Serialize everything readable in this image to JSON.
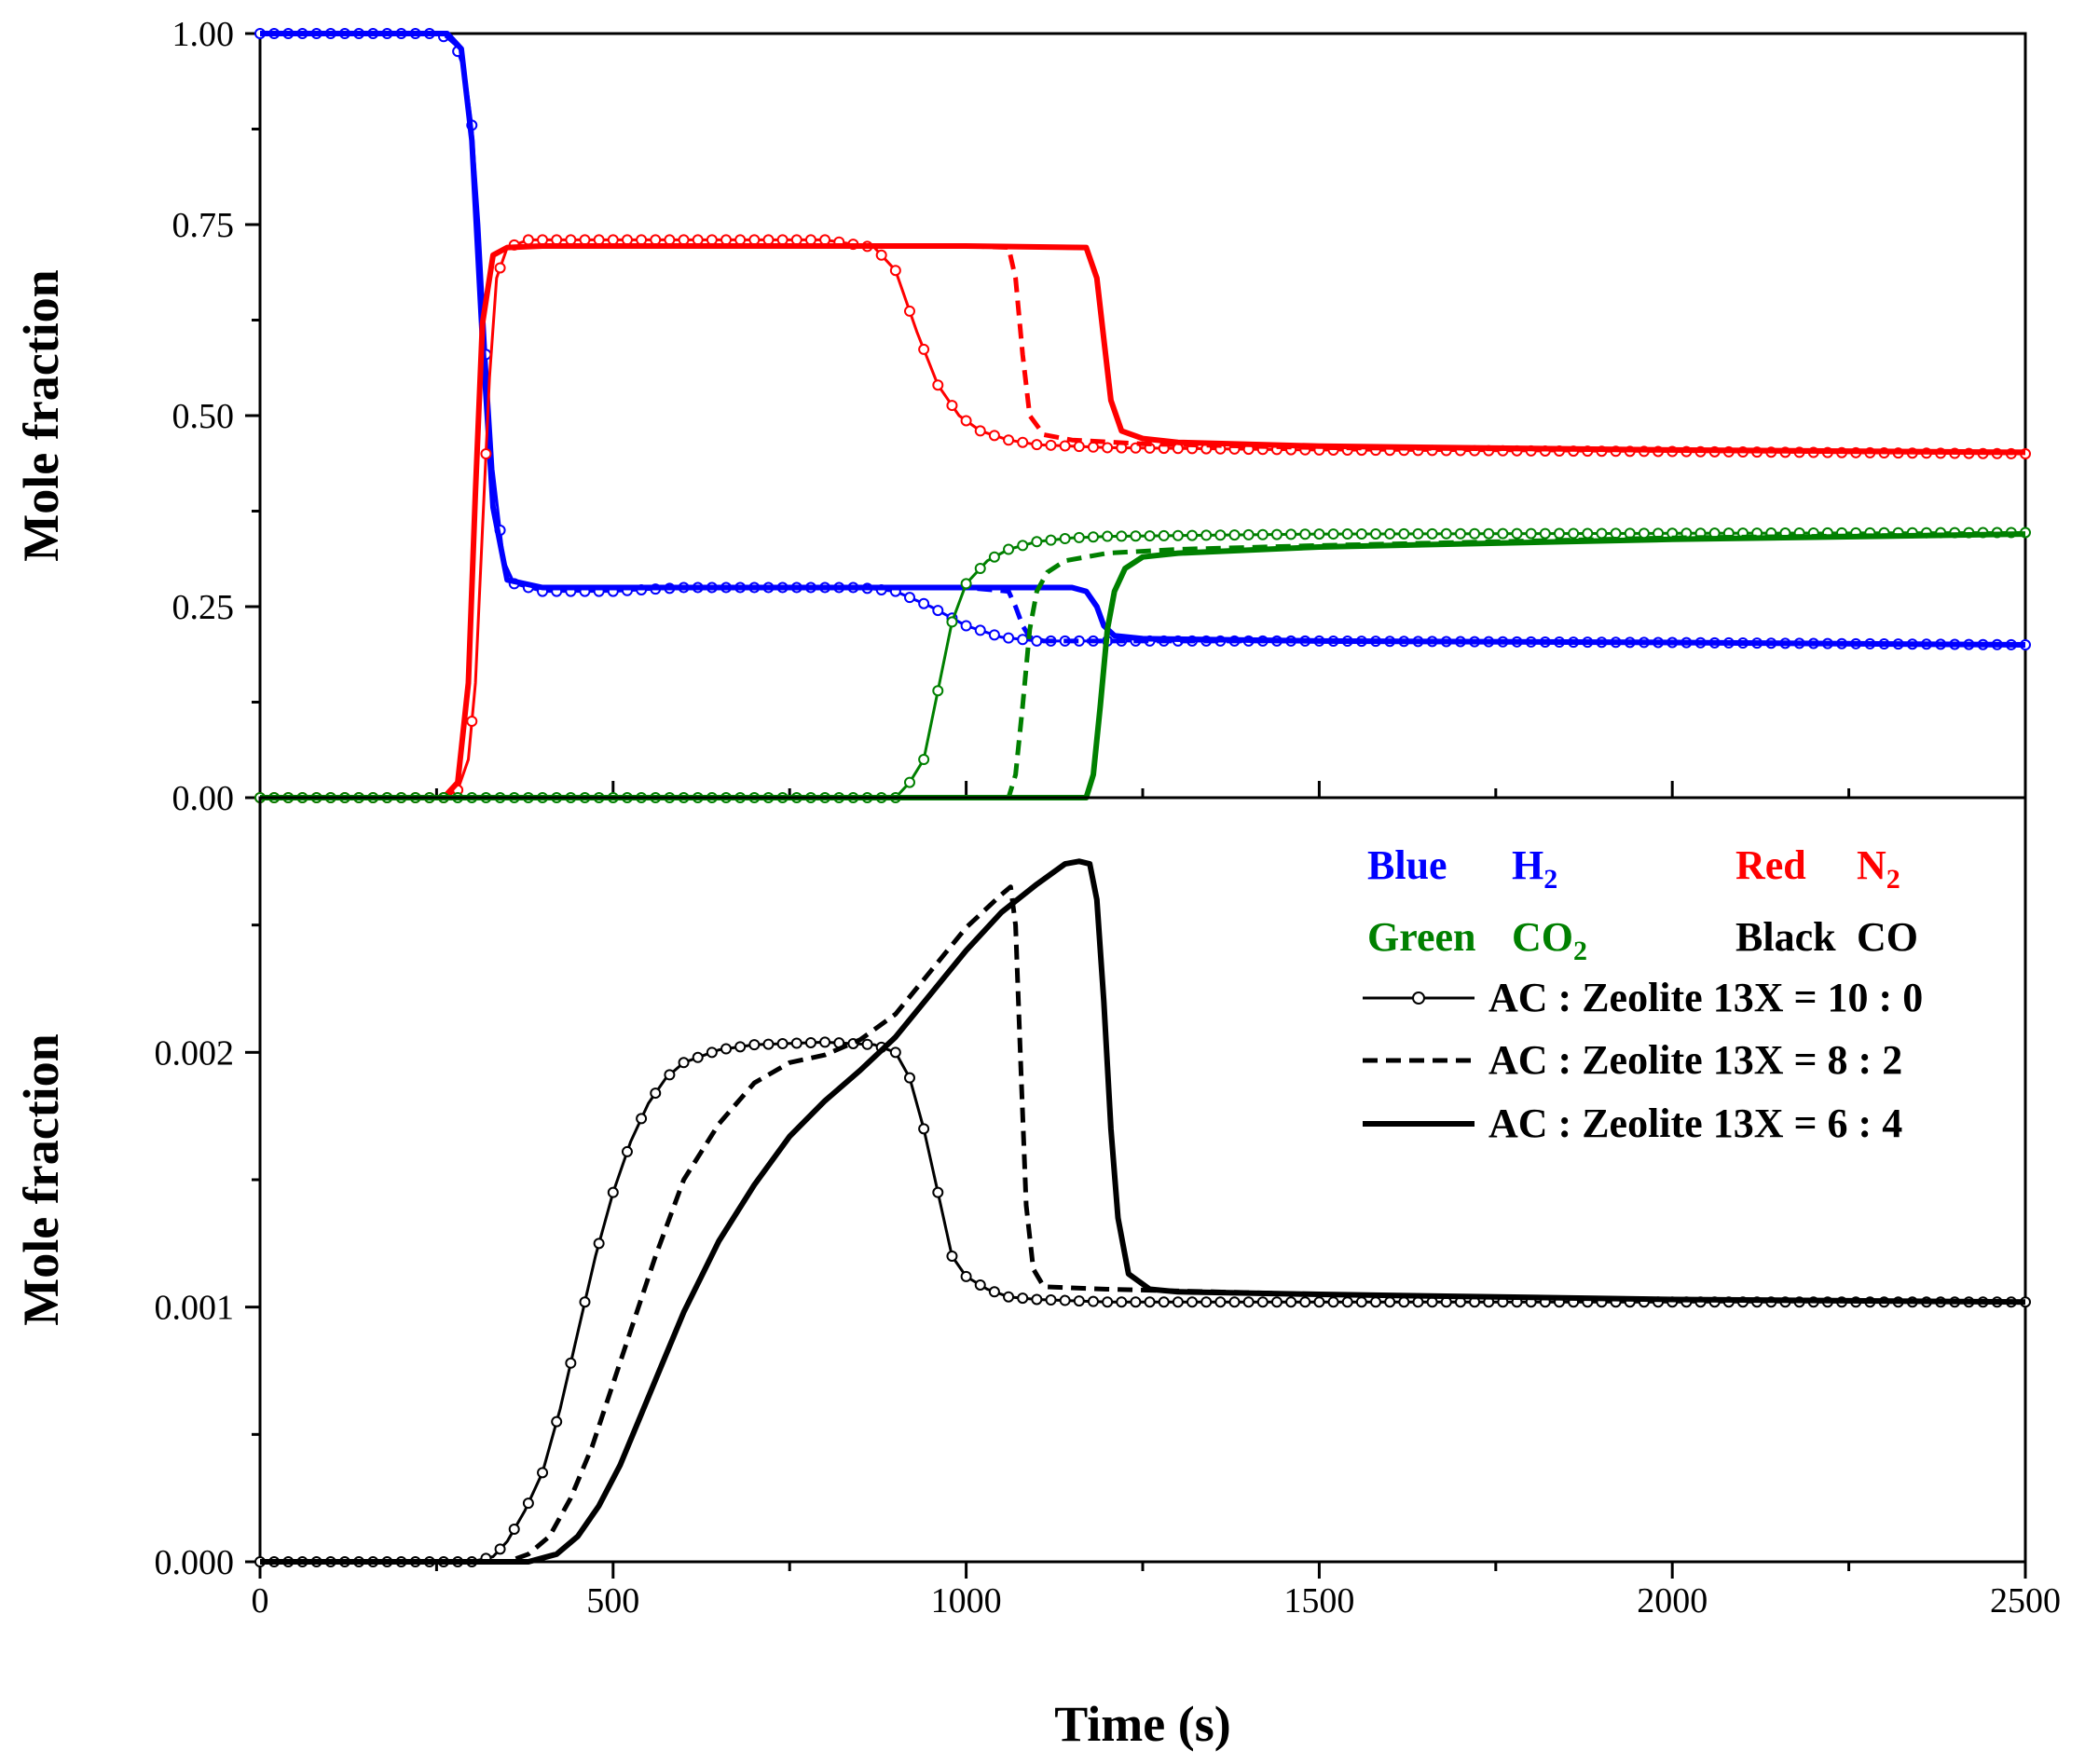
{
  "chart_data": [
    {
      "panel": "top",
      "type": "line",
      "xlabel": "Time (s)",
      "ylabel": "Mole fraction",
      "xlim": [
        0,
        2500
      ],
      "ylim": [
        0,
        1.0
      ],
      "xticks": [
        "0",
        "500",
        "1000",
        "1500",
        "2000",
        "2500"
      ],
      "yticks": [
        "0.00",
        "0.25",
        "0.50",
        "0.75",
        "1.00"
      ],
      "series": [
        {
          "name": "H2 AC : Zeolite 13X = 10 : 0",
          "color": "#0000ff",
          "style": "circle",
          "x": [
            0,
            250,
            275,
            290,
            300,
            310,
            320,
            330,
            345,
            360,
            400,
            500,
            600,
            700,
            850,
            900,
            950,
            1000,
            1050,
            1100,
            1200,
            1500,
            2000,
            2500
          ],
          "y": [
            1.0,
            1.0,
            0.99,
            0.95,
            0.88,
            0.75,
            0.58,
            0.43,
            0.31,
            0.28,
            0.27,
            0.27,
            0.275,
            0.275,
            0.275,
            0.27,
            0.25,
            0.225,
            0.21,
            0.205,
            0.205,
            0.205,
            0.203,
            0.2
          ]
        },
        {
          "name": "H2 AC : Zeolite 13X = 8 : 2",
          "color": "#0000ff",
          "style": "dashed",
          "x": [
            0,
            260,
            285,
            300,
            315,
            330,
            350,
            400,
            600,
            1000,
            1060,
            1070,
            1080,
            1090,
            1110,
            1200,
            1500,
            2000,
            2500
          ],
          "y": [
            1.0,
            1.0,
            0.98,
            0.86,
            0.6,
            0.38,
            0.285,
            0.275,
            0.275,
            0.275,
            0.27,
            0.25,
            0.225,
            0.21,
            0.205,
            0.205,
            0.205,
            0.203,
            0.2
          ]
        },
        {
          "name": "H2 AC : Zeolite 13X = 6 : 4",
          "color": "#0000ff",
          "style": "solid",
          "x": [
            0,
            265,
            285,
            300,
            315,
            330,
            350,
            400,
            600,
            1000,
            1150,
            1170,
            1185,
            1195,
            1210,
            1250,
            1500,
            2000,
            2500
          ],
          "y": [
            1.0,
            1.0,
            0.98,
            0.86,
            0.6,
            0.38,
            0.285,
            0.275,
            0.275,
            0.275,
            0.275,
            0.27,
            0.25,
            0.225,
            0.212,
            0.208,
            0.205,
            0.203,
            0.2
          ]
        },
        {
          "name": "N2 AC : Zeolite 13X = 10 : 0",
          "color": "#ff0000",
          "style": "circle",
          "x": [
            0,
            260,
            280,
            295,
            305,
            315,
            325,
            335,
            350,
            380,
            450,
            600,
            800,
            870,
            900,
            930,
            960,
            990,
            1020,
            1060,
            1100,
            1200,
            1500,
            2000,
            2500
          ],
          "y": [
            0.0,
            0.0,
            0.01,
            0.05,
            0.15,
            0.35,
            0.55,
            0.68,
            0.72,
            0.73,
            0.73,
            0.73,
            0.73,
            0.72,
            0.69,
            0.61,
            0.54,
            0.5,
            0.48,
            0.468,
            0.462,
            0.458,
            0.455,
            0.453,
            0.45
          ]
        },
        {
          "name": "N2 AC : Zeolite 13X = 8 : 2",
          "color": "#ff0000",
          "style": "dashed",
          "x": [
            0,
            260,
            280,
            295,
            305,
            315,
            330,
            350,
            400,
            600,
            1000,
            1060,
            1070,
            1080,
            1090,
            1110,
            1150,
            1250,
            1500,
            2000,
            2500
          ],
          "y": [
            0.0,
            0.0,
            0.02,
            0.15,
            0.4,
            0.62,
            0.71,
            0.72,
            0.722,
            0.722,
            0.722,
            0.72,
            0.68,
            0.58,
            0.5,
            0.475,
            0.468,
            0.463,
            0.458,
            0.455,
            0.452
          ]
        },
        {
          "name": "N2 AC : Zeolite 13X = 6 : 4",
          "color": "#ff0000",
          "style": "solid",
          "x": [
            0,
            260,
            280,
            295,
            305,
            315,
            330,
            350,
            400,
            600,
            1000,
            1170,
            1185,
            1195,
            1205,
            1220,
            1250,
            1300,
            1500,
            2000,
            2500
          ],
          "y": [
            0.0,
            0.0,
            0.02,
            0.15,
            0.4,
            0.62,
            0.71,
            0.72,
            0.722,
            0.722,
            0.722,
            0.72,
            0.68,
            0.6,
            0.52,
            0.48,
            0.47,
            0.465,
            0.46,
            0.455,
            0.452
          ]
        },
        {
          "name": "CO2 AC : Zeolite 13X = 10 : 0",
          "color": "#008000",
          "style": "circle",
          "x": [
            0,
            900,
            920,
            940,
            960,
            980,
            1000,
            1030,
            1060,
            1100,
            1150,
            1200,
            1300,
            1500,
            2000,
            2500
          ],
          "y": [
            0.0,
            0.0,
            0.02,
            0.05,
            0.14,
            0.23,
            0.28,
            0.31,
            0.325,
            0.335,
            0.34,
            0.342,
            0.343,
            0.345,
            0.346,
            0.347
          ]
        },
        {
          "name": "CO2 AC : Zeolite 13X = 8 : 2",
          "color": "#008000",
          "style": "dashed",
          "x": [
            0,
            1060,
            1070,
            1080,
            1090,
            1100,
            1115,
            1140,
            1200,
            1300,
            1500,
            2000,
            2500
          ],
          "y": [
            0.0,
            0.0,
            0.03,
            0.12,
            0.22,
            0.27,
            0.295,
            0.31,
            0.32,
            0.325,
            0.33,
            0.34,
            0.345
          ]
        },
        {
          "name": "CO2 AC : Zeolite 13X = 6 : 4",
          "color": "#008000",
          "style": "solid",
          "x": [
            0,
            1170,
            1180,
            1190,
            1200,
            1210,
            1225,
            1250,
            1300,
            1500,
            2000,
            2500
          ],
          "y": [
            0.0,
            0.0,
            0.03,
            0.12,
            0.22,
            0.27,
            0.3,
            0.315,
            0.32,
            0.328,
            0.338,
            0.345
          ]
        }
      ]
    },
    {
      "panel": "bottom",
      "type": "line",
      "xlabel": "Time (s)",
      "ylabel": "Mole fraction",
      "xlim": [
        0,
        2500
      ],
      "ylim": [
        0,
        0.003
      ],
      "xticks": [
        "0",
        "500",
        "1000",
        "1500",
        "2000",
        "2500"
      ],
      "yticks": [
        "0.000",
        "0.001",
        "0.002"
      ],
      "series": [
        {
          "name": "CO AC : Zeolite 13X = 10 : 0",
          "color": "#000000",
          "style": "circle",
          "x": [
            0,
            300,
            330,
            350,
            375,
            400,
            425,
            450,
            475,
            500,
            525,
            550,
            575,
            600,
            650,
            700,
            800,
            870,
            900,
            920,
            940,
            960,
            980,
            1000,
            1030,
            1060,
            1100,
            1200,
            1500,
            2000,
            2500
          ],
          "y": [
            0.0,
            0.0,
            2e-05,
            8e-05,
            0.0002,
            0.00035,
            0.0006,
            0.0009,
            0.0012,
            0.00145,
            0.00165,
            0.0018,
            0.0019,
            0.00196,
            0.00201,
            0.00203,
            0.00204,
            0.00203,
            0.002,
            0.0019,
            0.0017,
            0.00145,
            0.0012,
            0.00112,
            0.00107,
            0.00104,
            0.00103,
            0.00102,
            0.00102,
            0.00102,
            0.00102
          ]
        },
        {
          "name": "CO AC : Zeolite 13X = 8 : 2",
          "color": "#000000",
          "style": "dashed",
          "x": [
            0,
            350,
            380,
            410,
            440,
            470,
            500,
            530,
            560,
            600,
            650,
            700,
            750,
            800,
            850,
            900,
            950,
            1000,
            1050,
            1063,
            1070,
            1078,
            1085,
            1095,
            1110,
            1200,
            1500,
            2000,
            2500
          ],
          "y": [
            0.0,
            0.0,
            3e-05,
            0.0001,
            0.00025,
            0.00045,
            0.0007,
            0.00095,
            0.0012,
            0.0015,
            0.00172,
            0.00188,
            0.00196,
            0.00199,
            0.00205,
            0.00215,
            0.00232,
            0.00249,
            0.00262,
            0.00265,
            0.0025,
            0.0019,
            0.0014,
            0.00115,
            0.00108,
            0.00107,
            0.00105,
            0.00103,
            0.00102
          ]
        },
        {
          "name": "CO AC : Zeolite 13X = 6 : 4",
          "color": "#000000",
          "style": "solid",
          "x": [
            0,
            380,
            420,
            450,
            480,
            510,
            540,
            570,
            600,
            650,
            700,
            750,
            800,
            850,
            900,
            950,
            1000,
            1050,
            1100,
            1140,
            1160,
            1175,
            1185,
            1195,
            1205,
            1215,
            1230,
            1260,
            1300,
            1500,
            2000,
            2500
          ],
          "y": [
            0.0,
            0.0,
            3e-05,
            0.0001,
            0.00022,
            0.00038,
            0.00058,
            0.00078,
            0.00098,
            0.00126,
            0.00148,
            0.00167,
            0.00181,
            0.00193,
            0.00206,
            0.00223,
            0.0024,
            0.00255,
            0.00266,
            0.00274,
            0.00275,
            0.00274,
            0.0026,
            0.0022,
            0.0017,
            0.00135,
            0.00113,
            0.00107,
            0.00106,
            0.00105,
            0.00103,
            0.00102
          ]
        }
      ],
      "legend": {
        "placement": "top-right",
        "color_key": [
          {
            "label": "Blue",
            "species": "H",
            "sub": "2",
            "color": "#0000ff"
          },
          {
            "label": "Red",
            "species": "N",
            "sub": "2",
            "color": "#ff0000"
          },
          {
            "label": "Green",
            "species": "CO",
            "sub": "2",
            "color": "#008000"
          },
          {
            "label": "Black",
            "species": "CO",
            "sub": "",
            "color": "#000000"
          }
        ],
        "entries": [
          {
            "label": "AC : Zeolite 13X = 10 : 0",
            "style": "circle"
          },
          {
            "label": "AC : Zeolite 13X = 8 : 2",
            "style": "dashed"
          },
          {
            "label": "AC : Zeolite 13X = 6 : 4",
            "style": "solid"
          }
        ]
      }
    }
  ]
}
